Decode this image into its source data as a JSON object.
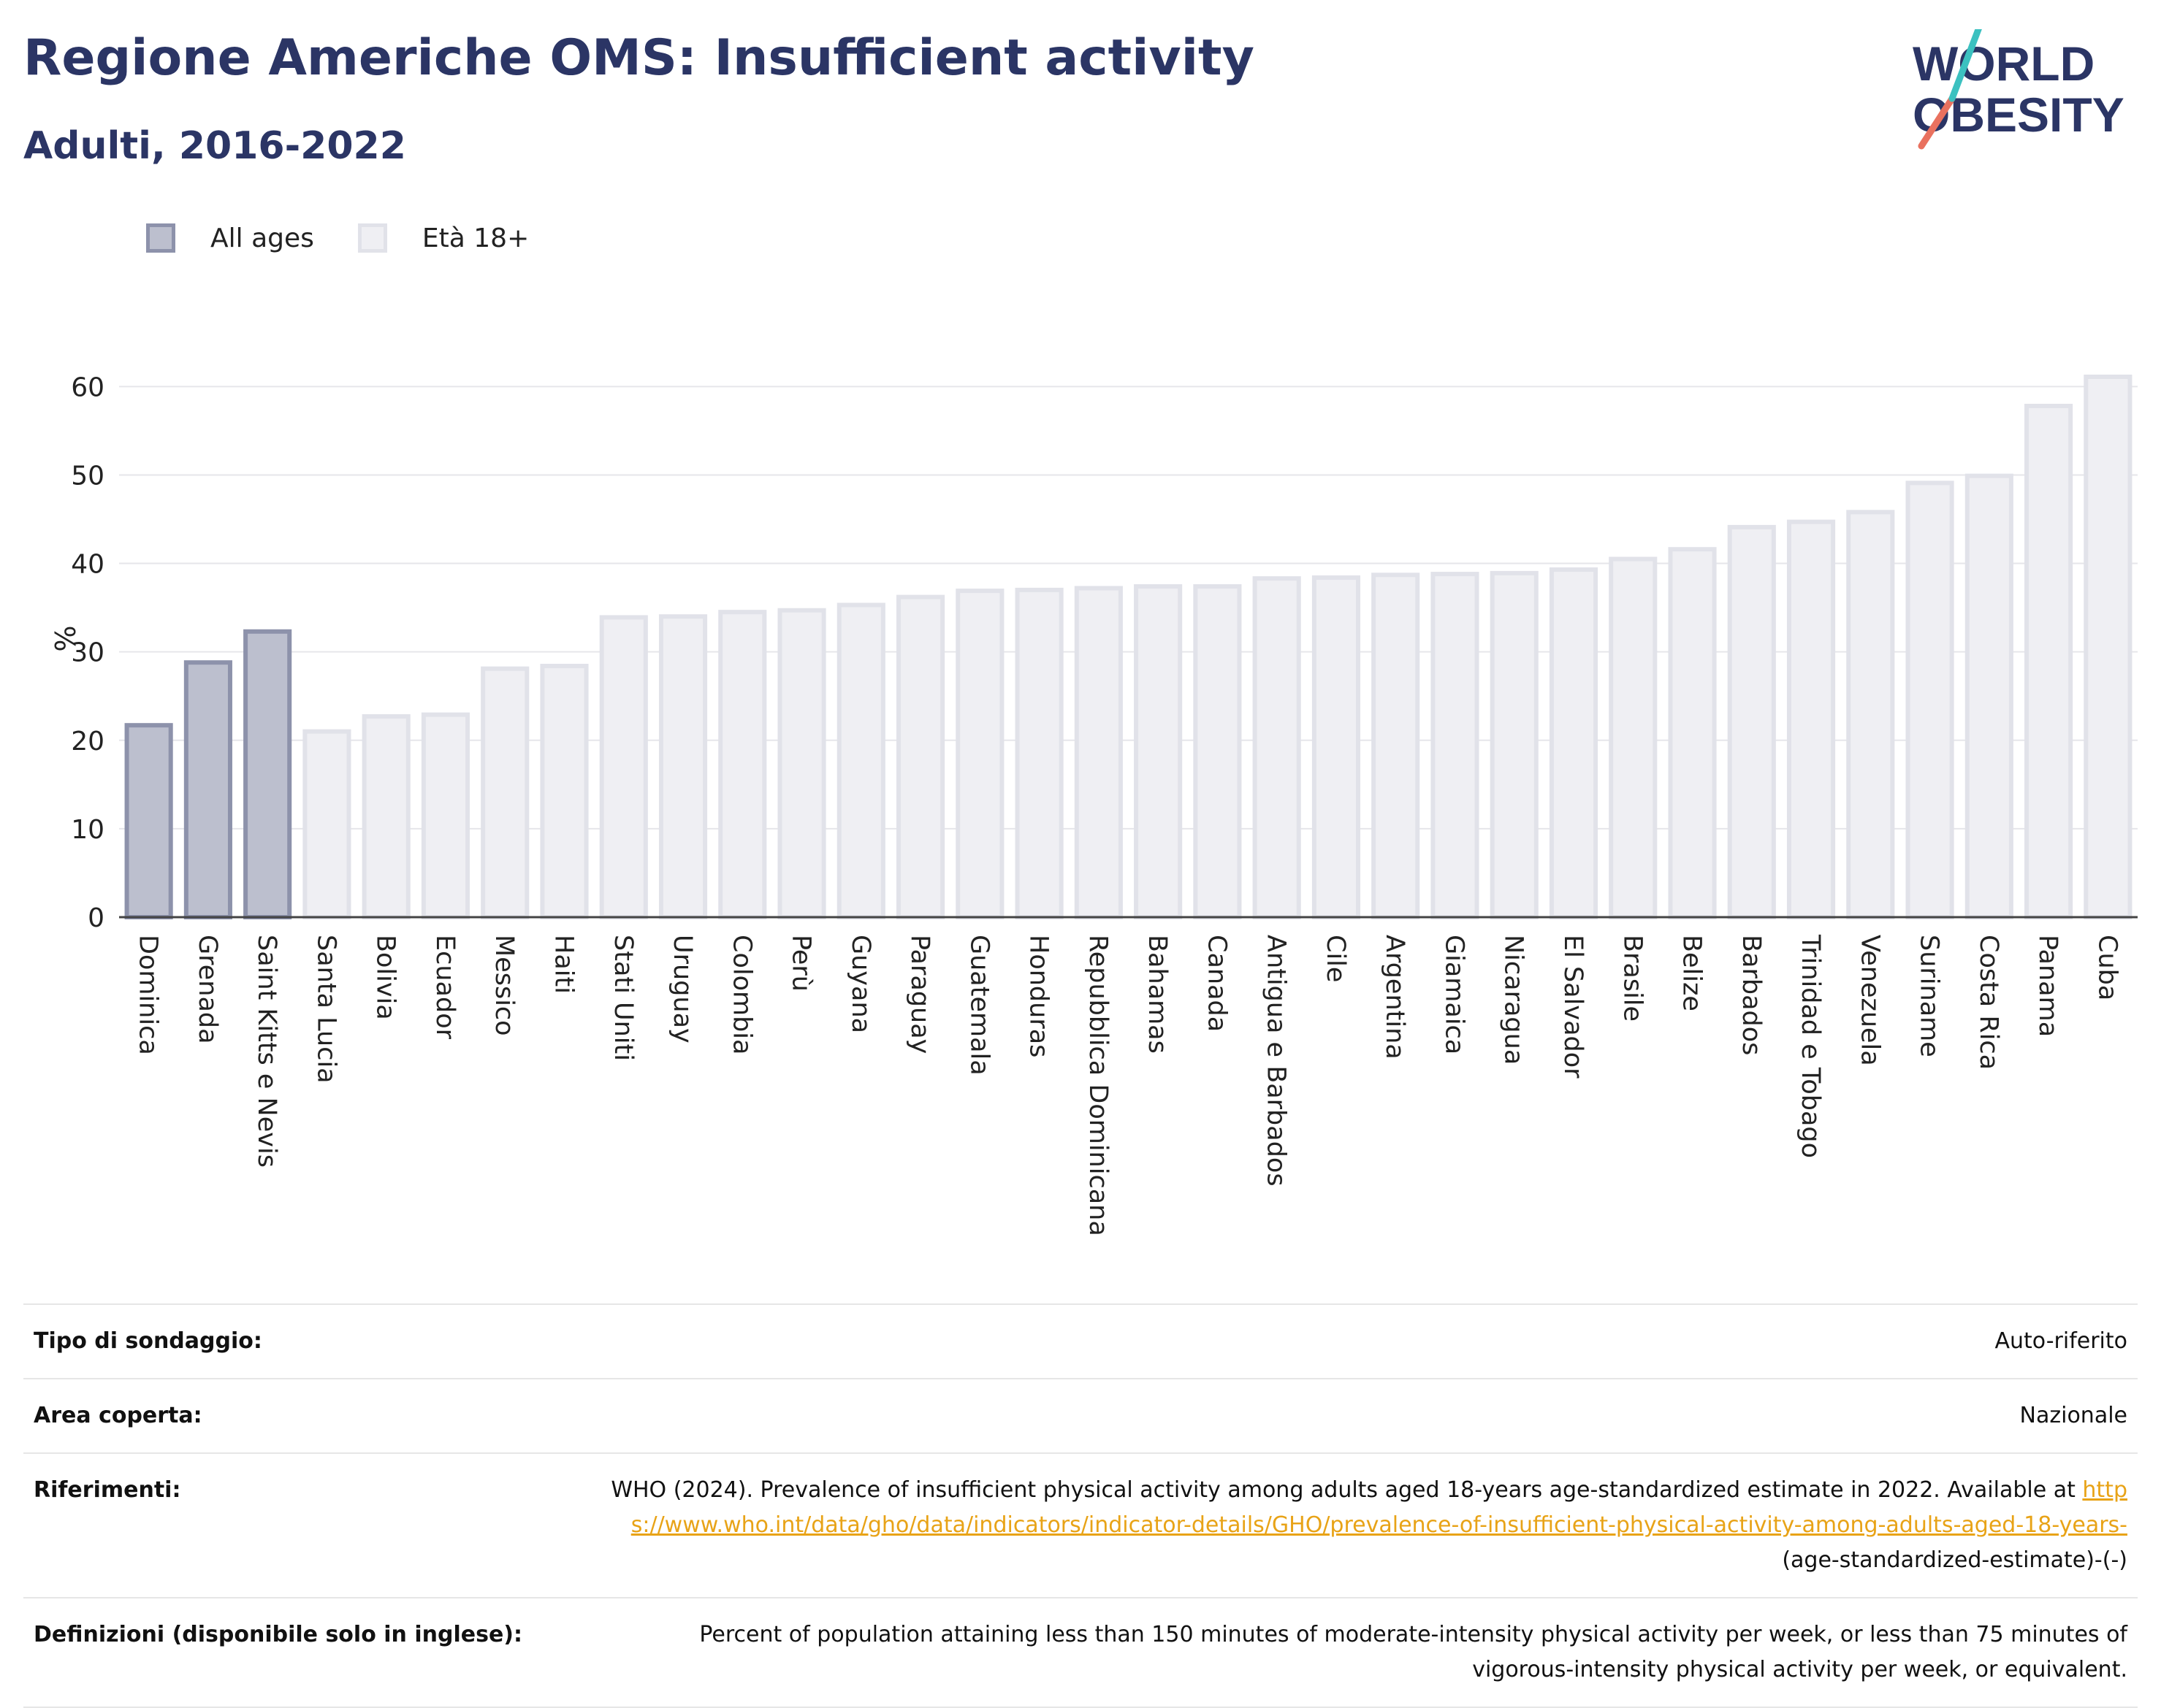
{
  "header": {
    "title": "Regione Americhe OMS: Insufficient activity",
    "subtitle": "Adulti, 2016-2022"
  },
  "logo": {
    "line1": "WORLD",
    "line2": "OBESITY"
  },
  "legend": [
    {
      "label": "All ages",
      "color": "#bcbfce",
      "border": "#8d92ab"
    },
    {
      "label": "Età 18+",
      "color": "#efeff3",
      "border": "#e1e2e9"
    }
  ],
  "chart_data": {
    "type": "bar",
    "ylabel": "%",
    "ylim": [
      0,
      63
    ],
    "yticks": [
      0,
      10,
      20,
      30,
      40,
      50,
      60
    ],
    "grid": true,
    "legend_position": "top-left",
    "categories": [
      "Dominica",
      "Grenada",
      "Saint Kitts e Nevis",
      "Santa Lucia",
      "Bolivia",
      "Ecuador",
      "Messico",
      "Haiti",
      "Stati Uniti",
      "Uruguay",
      "Colombia",
      "Perù",
      "Guyana",
      "Paraguay",
      "Guatemala",
      "Honduras",
      "Repubblica Dominicana",
      "Bahamas",
      "Canada",
      "Antigua e Barbados",
      "Cile",
      "Argentina",
      "Giamaica",
      "Nicaragua",
      "El Salvador",
      "Brasile",
      "Belize",
      "Barbados",
      "Trinidad e Tobago",
      "Venezuela",
      "Suriname",
      "Costa Rica",
      "Panama",
      "Cuba"
    ],
    "values": [
      21.7,
      28.8,
      32.3,
      21.0,
      22.7,
      22.9,
      28.1,
      28.4,
      33.9,
      34.0,
      34.5,
      34.7,
      35.3,
      36.2,
      36.9,
      37.0,
      37.2,
      37.4,
      37.4,
      38.3,
      38.4,
      38.7,
      38.8,
      38.9,
      39.3,
      40.5,
      41.6,
      44.1,
      44.7,
      45.8,
      49.1,
      49.9,
      57.8,
      61.1
    ],
    "series_group": [
      "All ages",
      "All ages",
      "All ages",
      "Età 18+",
      "Età 18+",
      "Età 18+",
      "Età 18+",
      "Età 18+",
      "Età 18+",
      "Età 18+",
      "Età 18+",
      "Età 18+",
      "Età 18+",
      "Età 18+",
      "Età 18+",
      "Età 18+",
      "Età 18+",
      "Età 18+",
      "Età 18+",
      "Età 18+",
      "Età 18+",
      "Età 18+",
      "Età 18+",
      "Età 18+",
      "Età 18+",
      "Età 18+",
      "Età 18+",
      "Età 18+",
      "Età 18+",
      "Età 18+",
      "Età 18+",
      "Età 18+",
      "Età 18+",
      "Età 18+"
    ]
  },
  "info": {
    "survey_type_label": "Tipo di sondaggio:",
    "survey_type_value": "Auto-riferito",
    "area_label": "Area coperta:",
    "area_value": "Nazionale",
    "references_label": "Riferimenti:",
    "references_text": "WHO (2024). Prevalence of insufficient physical activity among adults aged 18-years age-standardized estimate in 2022. Available at",
    "references_link": "https://www.who.int/data/gho/data/indicators/indicator-details/GHO/prevalence-of-insufficient-physical-activity-among-adults-aged-18-years-",
    "references_tail": "(age-standardized-estimate)-(-)",
    "definitions_label": "Definizioni (disponibile solo in inglese):",
    "definitions_text": "Percent of population attaining less than 150 minutes of moderate-intensity physical activity per week, or less than 75 minutes of vigorous-intensity physical activity per week, or equivalent."
  }
}
